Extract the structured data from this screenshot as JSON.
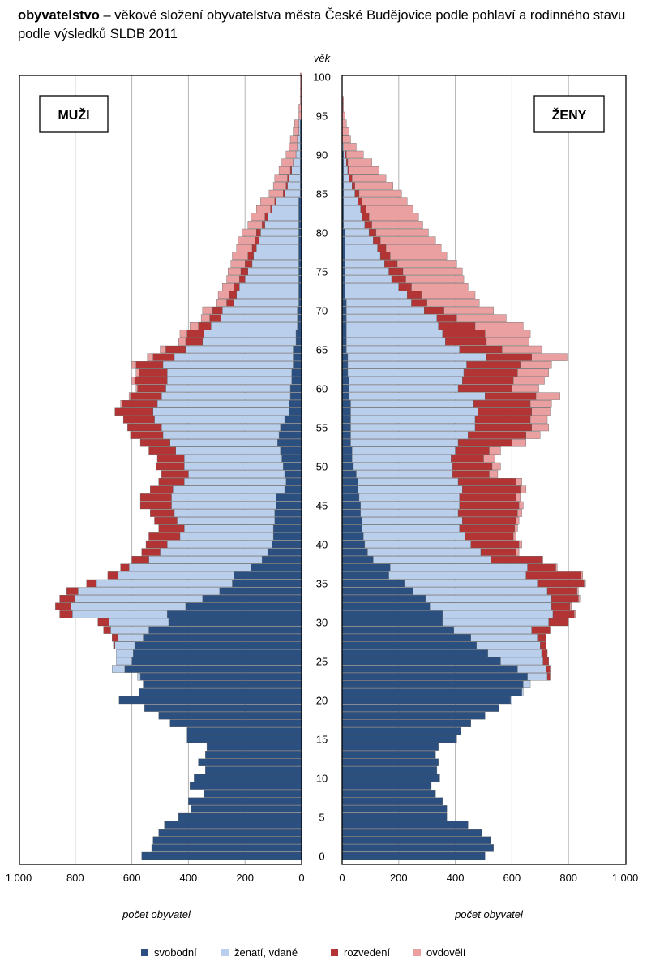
{
  "title": {
    "bold": "obyvatelstvo",
    "rest": " – věkové složení obyvatelstva města České Budějovice podle pohlaví a rodinného stavu podle výsledků SLDB 2011"
  },
  "chart_data": {
    "type": "bar",
    "subtype": "population-pyramid-stacked",
    "age_label": "věk",
    "left_panel_label": "MUŽI",
    "right_panel_label": "ŽENY",
    "x_axis_title": "počet obyvatel",
    "xlim": [
      0,
      1000
    ],
    "x_ticks": [
      "1 000",
      "800",
      "600",
      "400",
      "200",
      "0"
    ],
    "x_ticks_right": [
      "0",
      "200",
      "400",
      "600",
      "800",
      "1 000"
    ],
    "age_ticks": [
      "0",
      "5",
      "10",
      "15",
      "20",
      "25",
      "30",
      "35",
      "40",
      "45",
      "50",
      "55",
      "60",
      "65",
      "70",
      "75",
      "80",
      "85",
      "90",
      "95",
      "100"
    ],
    "ages": [
      0,
      1,
      2,
      3,
      4,
      5,
      6,
      7,
      8,
      9,
      10,
      11,
      12,
      13,
      14,
      15,
      16,
      17,
      18,
      19,
      20,
      21,
      22,
      23,
      24,
      25,
      26,
      27,
      28,
      29,
      30,
      31,
      32,
      33,
      34,
      35,
      36,
      37,
      38,
      39,
      40,
      41,
      42,
      43,
      44,
      45,
      46,
      47,
      48,
      49,
      50,
      51,
      52,
      53,
      54,
      55,
      56,
      57,
      58,
      59,
      60,
      61,
      62,
      63,
      64,
      65,
      66,
      67,
      68,
      69,
      70,
      71,
      72,
      73,
      74,
      75,
      76,
      77,
      78,
      79,
      80,
      81,
      82,
      83,
      84,
      85,
      86,
      87,
      88,
      89,
      90,
      91,
      92,
      93,
      94,
      95,
      96,
      97,
      98,
      99,
      100
    ],
    "series_names": [
      "svobodní",
      "ženatí, vdané",
      "rozvedení",
      "ovdovělí"
    ],
    "colors": {
      "svobodní": "#2b4f7f",
      "ženatí, vdané": "#b9cfec",
      "rozvedení": "#b23434",
      "ovdovělí": "#eaa0a0",
      "grid": "#b3b3b3"
    },
    "men": {
      "svobodní": [
        565,
        530,
        525,
        505,
        485,
        435,
        390,
        400,
        345,
        395,
        380,
        340,
        365,
        340,
        335,
        405,
        405,
        465,
        505,
        555,
        645,
        575,
        560,
        570,
        625,
        600,
        595,
        590,
        560,
        540,
        470,
        475,
        410,
        350,
        290,
        245,
        240,
        180,
        140,
        120,
        105,
        100,
        100,
        95,
        95,
        90,
        90,
        60,
        55,
        60,
        65,
        70,
        75,
        85,
        80,
        75,
        60,
        45,
        45,
        40,
        40,
        35,
        35,
        30,
        30,
        30,
        20,
        20,
        15,
        15,
        15,
        10,
        10,
        10,
        10,
        10,
        10,
        10,
        10,
        10,
        10,
        10,
        10,
        10,
        10,
        5,
        5,
        5,
        5,
        5,
        5,
        5,
        5,
        5,
        5,
        0,
        0,
        0,
        0,
        0,
        0
      ],
      "ženatí, vdané": [
        0,
        0,
        0,
        0,
        0,
        0,
        0,
        0,
        0,
        0,
        0,
        0,
        0,
        0,
        0,
        0,
        0,
        0,
        0,
        0,
        0,
        0,
        0,
        10,
        45,
        55,
        60,
        70,
        90,
        135,
        210,
        335,
        405,
        450,
        500,
        480,
        410,
        430,
        400,
        380,
        370,
        330,
        315,
        345,
        355,
        370,
        370,
        395,
        360,
        340,
        350,
        345,
        370,
        380,
        410,
        420,
        460,
        480,
        465,
        455,
        440,
        440,
        440,
        460,
        420,
        380,
        330,
        325,
        305,
        270,
        265,
        230,
        220,
        210,
        190,
        180,
        165,
        160,
        150,
        140,
        135,
        120,
        110,
        95,
        80,
        55,
        45,
        40,
        30,
        25,
        15,
        10,
        10,
        5,
        5,
        0,
        0,
        0,
        0,
        0,
        0
      ],
      "rozvedení": [
        0,
        0,
        0,
        0,
        0,
        0,
        0,
        0,
        0,
        0,
        0,
        0,
        0,
        0,
        0,
        0,
        0,
        0,
        0,
        0,
        0,
        0,
        0,
        0,
        0,
        0,
        0,
        5,
        20,
        25,
        40,
        45,
        55,
        55,
        40,
        35,
        35,
        30,
        60,
        65,
        75,
        110,
        90,
        80,
        85,
        110,
        110,
        80,
        90,
        95,
        100,
        95,
        95,
        105,
        115,
        120,
        110,
        135,
        125,
        110,
        100,
        115,
        100,
        95,
        75,
        70,
        60,
        60,
        45,
        40,
        35,
        25,
        25,
        20,
        20,
        25,
        25,
        20,
        15,
        15,
        15,
        10,
        10,
        5,
        5,
        5,
        5,
        5,
        5,
        0,
        0,
        0,
        0,
        0,
        0,
        0,
        0,
        0,
        0,
        0,
        0
      ],
      "ovdovělí": [
        0,
        0,
        0,
        0,
        0,
        0,
        0,
        0,
        0,
        0,
        0,
        0,
        0,
        0,
        0,
        0,
        0,
        0,
        0,
        0,
        0,
        0,
        0,
        0,
        0,
        0,
        0,
        0,
        0,
        0,
        0,
        0,
        0,
        0,
        0,
        0,
        0,
        0,
        0,
        0,
        0,
        0,
        0,
        0,
        0,
        0,
        0,
        0,
        0,
        0,
        0,
        0,
        0,
        0,
        0,
        0,
        0,
        0,
        5,
        5,
        5,
        10,
        10,
        15,
        20,
        20,
        25,
        25,
        30,
        30,
        35,
        35,
        40,
        40,
        45,
        45,
        50,
        55,
        55,
        60,
        50,
        50,
        50,
        50,
        50,
        50,
        45,
        45,
        40,
        40,
        35,
        30,
        25,
        20,
        15,
        10,
        10,
        5,
        5,
        5,
        5
      ]
    },
    "women": {
      "svobodní": [
        505,
        535,
        525,
        495,
        445,
        370,
        370,
        355,
        330,
        315,
        345,
        335,
        340,
        330,
        340,
        405,
        420,
        455,
        505,
        555,
        595,
        635,
        640,
        655,
        620,
        560,
        515,
        475,
        455,
        395,
        355,
        355,
        310,
        295,
        250,
        220,
        165,
        170,
        110,
        90,
        80,
        75,
        70,
        70,
        65,
        65,
        60,
        55,
        55,
        50,
        40,
        35,
        35,
        30,
        30,
        30,
        30,
        30,
        30,
        25,
        25,
        25,
        20,
        20,
        20,
        15,
        15,
        15,
        15,
        15,
        15,
        15,
        10,
        10,
        10,
        10,
        10,
        10,
        10,
        10,
        10,
        5,
        5,
        5,
        5,
        5,
        5,
        5,
        5,
        5,
        5,
        0,
        0,
        0,
        0,
        0,
        0,
        0,
        0,
        0,
        0
      ],
      "ženatí, vdané": [
        0,
        0,
        0,
        0,
        0,
        0,
        0,
        0,
        0,
        0,
        0,
        0,
        0,
        0,
        0,
        0,
        0,
        0,
        0,
        0,
        5,
        5,
        25,
        70,
        100,
        150,
        190,
        225,
        235,
        275,
        375,
        390,
        430,
        445,
        475,
        470,
        485,
        485,
        415,
        400,
        375,
        360,
        345,
        355,
        345,
        350,
        355,
        370,
        355,
        340,
        350,
        350,
        365,
        380,
        415,
        440,
        440,
        450,
        435,
        480,
        385,
        400,
        410,
        420,
        490,
        400,
        350,
        340,
        325,
        320,
        275,
        230,
        220,
        190,
        165,
        155,
        140,
        125,
        115,
        100,
        85,
        75,
        65,
        60,
        50,
        40,
        30,
        20,
        15,
        10,
        5,
        5,
        0,
        0,
        0,
        0,
        0,
        0,
        0,
        0,
        0
      ],
      "rozvedení": [
        0,
        0,
        0,
        0,
        0,
        0,
        0,
        0,
        0,
        0,
        0,
        0,
        0,
        0,
        0,
        0,
        0,
        0,
        0,
        0,
        0,
        0,
        0,
        10,
        15,
        20,
        20,
        20,
        30,
        65,
        70,
        75,
        65,
        95,
        105,
        165,
        195,
        100,
        180,
        125,
        170,
        170,
        195,
        190,
        210,
        210,
        200,
        205,
        205,
        130,
        140,
        115,
        120,
        190,
        205,
        200,
        195,
        190,
        200,
        180,
        190,
        180,
        190,
        190,
        160,
        150,
        145,
        150,
        130,
        70,
        70,
        55,
        50,
        45,
        50,
        50,
        45,
        35,
        30,
        25,
        25,
        25,
        25,
        20,
        15,
        15,
        10,
        10,
        5,
        5,
        5,
        0,
        0,
        0,
        0,
        0,
        0,
        0,
        0,
        0,
        0
      ],
      "ovdovělí": [
        0,
        0,
        0,
        0,
        0,
        0,
        0,
        0,
        0,
        0,
        0,
        0,
        0,
        0,
        0,
        0,
        0,
        0,
        0,
        0,
        0,
        0,
        0,
        0,
        0,
        0,
        0,
        0,
        0,
        0,
        0,
        5,
        5,
        5,
        5,
        5,
        5,
        5,
        5,
        10,
        10,
        10,
        10,
        10,
        15,
        15,
        15,
        20,
        20,
        30,
        30,
        40,
        40,
        50,
        50,
        60,
        60,
        65,
        75,
        85,
        95,
        110,
        110,
        110,
        125,
        140,
        150,
        160,
        170,
        175,
        175,
        185,
        190,
        200,
        205,
        210,
        210,
        200,
        195,
        195,
        185,
        180,
        175,
        165,
        160,
        150,
        135,
        120,
        105,
        85,
        60,
        45,
        30,
        25,
        15,
        10,
        5,
        5,
        0,
        0,
        0
      ]
    }
  },
  "legend": [
    {
      "label": "svobodní",
      "color": "#2b4f7f"
    },
    {
      "label": "ženatí, vdané",
      "color": "#b9cfec"
    },
    {
      "label": "rozvedení",
      "color": "#b23434"
    },
    {
      "label": "ovdovělí",
      "color": "#eaa0a0"
    }
  ]
}
